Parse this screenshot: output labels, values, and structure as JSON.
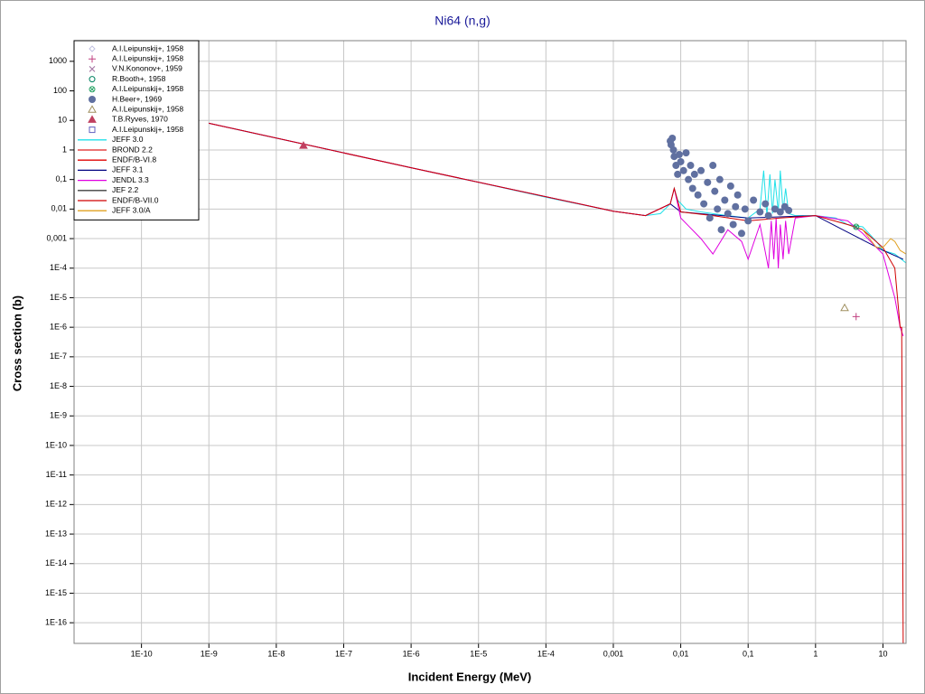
{
  "chart_data": {
    "type": "line",
    "title": "Ni64 (n,g)",
    "x_label": "Incident Energy (MeV)",
    "y_label": "Cross section (b)",
    "xlog": true,
    "ylog": true,
    "grid": true,
    "legend": "upper left",
    "xlim": [
      1e-11,
      22
    ],
    "ylim": [
      2e-17,
      5000
    ],
    "xticks": [
      {
        "value": 1e-10,
        "label": "1E-10"
      },
      {
        "value": 1e-09,
        "label": "1E-9"
      },
      {
        "value": 1e-08,
        "label": "1E-8"
      },
      {
        "value": 1e-07,
        "label": "1E-7"
      },
      {
        "value": 1e-06,
        "label": "1E-6"
      },
      {
        "value": 1e-05,
        "label": "1E-5"
      },
      {
        "value": 0.0001,
        "label": "1E-4"
      },
      {
        "value": 0.001,
        "label": "0,001"
      },
      {
        "value": 0.01,
        "label": "0,01"
      },
      {
        "value": 0.1,
        "label": "0,1"
      },
      1,
      10
    ],
    "yticks": [
      1000,
      100,
      10,
      1,
      {
        "value": 0.1,
        "label": "0,1"
      },
      {
        "value": 0.01,
        "label": "0,01"
      },
      {
        "value": 0.001,
        "label": "0,001"
      },
      {
        "value": 0.0001,
        "label": "1E-4"
      },
      {
        "value": 1e-05,
        "label": "1E-5"
      },
      {
        "value": 1e-06,
        "label": "1E-6"
      },
      {
        "value": 1e-07,
        "label": "1E-7"
      },
      {
        "value": 1e-08,
        "label": "1E-8"
      },
      {
        "value": 1e-09,
        "label": "1E-9"
      },
      {
        "value": 1e-10,
        "label": "1E-10"
      },
      {
        "value": 1e-11,
        "label": "1E-11"
      },
      {
        "value": 1e-12,
        "label": "1E-12"
      },
      {
        "value": 1e-13,
        "label": "1E-13"
      },
      {
        "value": 1e-14,
        "label": "1E-14"
      },
      {
        "value": 1e-15,
        "label": "1E-15"
      },
      {
        "value": 1e-16,
        "label": "1E-16"
      }
    ],
    "series": [
      {
        "name": "A.I.Leipunskij+, 1958",
        "color": "#c0c0e0",
        "marker": "diamond"
      },
      {
        "name": "A.I.Leipunskij+, 1958",
        "color": "#c04080",
        "marker": "plus",
        "x": [
          4
        ],
        "values": [
          2.3e-06
        ]
      },
      {
        "name": "V.N.Kononov+, 1959",
        "color": "#a070a0",
        "marker": "x"
      },
      {
        "name": "R.Booth+, 1958",
        "color": "#008060",
        "marker": "circle"
      },
      {
        "name": "A.I.Leipunskij+, 1958",
        "color": "#20a060",
        "marker": "circle-cross",
        "x": [
          4
        ],
        "values": [
          0.0025
        ]
      },
      {
        "name": "H.Beer+, 1969",
        "color": "#6070a0",
        "marker": "dot",
        "x": [
          0.007,
          0.0072,
          0.0075,
          0.0078,
          0.008,
          0.0085,
          0.009,
          0.0095,
          0.01,
          0.011,
          0.012,
          0.013,
          0.014,
          0.015,
          0.016,
          0.018,
          0.02,
          0.022,
          0.025,
          0.027,
          0.03,
          0.032,
          0.035,
          0.038,
          0.04,
          0.045,
          0.05,
          0.055,
          0.06,
          0.065,
          0.07,
          0.08,
          0.09,
          0.1,
          0.12,
          0.15,
          0.18,
          0.2,
          0.25,
          0.3,
          0.35,
          0.4
        ],
        "values": [
          2.0,
          1.5,
          2.5,
          1.0,
          0.6,
          0.3,
          0.15,
          0.7,
          0.4,
          0.2,
          0.8,
          0.1,
          0.3,
          0.05,
          0.15,
          0.03,
          0.2,
          0.015,
          0.08,
          0.005,
          0.3,
          0.04,
          0.01,
          0.1,
          0.002,
          0.02,
          0.007,
          0.06,
          0.003,
          0.012,
          0.03,
          0.0015,
          0.01,
          0.004,
          0.02,
          0.008,
          0.015,
          0.006,
          0.01,
          0.008,
          0.012,
          0.009
        ]
      },
      {
        "name": "A.I.Leipunskij+, 1958",
        "color": "#a09060",
        "marker": "triangle",
        "x": [
          2.7
        ],
        "values": [
          4.5e-06
        ]
      },
      {
        "name": "T.B.Ryves, 1970",
        "color": "#c04060",
        "marker": "triangle-filled",
        "x": [
          2.53e-08
        ],
        "values": [
          1.4
        ]
      },
      {
        "name": "A.I.Leipunskij+, 1958",
        "color": "#6060c0",
        "marker": "square"
      },
      {
        "name": "JEFF 3.0",
        "color": "#20e0e8",
        "marker": "line",
        "x": [
          1e-09,
          1e-08,
          1e-07,
          1e-06,
          1e-05,
          0.0001,
          0.001,
          0.003,
          0.005,
          0.007,
          0.008,
          0.009,
          0.012,
          0.02,
          0.03,
          0.05,
          0.1,
          0.15,
          0.17,
          0.19,
          0.21,
          0.23,
          0.25,
          0.28,
          0.3,
          0.33,
          0.36,
          0.4,
          0.5,
          1,
          2,
          3,
          5,
          8,
          10,
          15,
          22
        ],
        "values": [
          8,
          2.5,
          0.8,
          0.25,
          0.08,
          0.025,
          0.0085,
          0.006,
          0.007,
          0.015,
          0.05,
          0.02,
          0.01,
          0.008,
          0.007,
          0.006,
          0.005,
          0.01,
          0.2,
          0.006,
          0.15,
          0.007,
          0.1,
          0.008,
          0.2,
          0.008,
          0.05,
          0.007,
          0.006,
          0.006,
          0.005,
          0.003,
          0.0025,
          0.0008,
          0.0004,
          0.0003,
          0.00015
        ]
      },
      {
        "name": "BROND 2.2",
        "color": "#e02020",
        "marker": "line"
      },
      {
        "name": "ENDF/B-VI.8",
        "color": "#e00000",
        "marker": "line"
      },
      {
        "name": "JEFF 3.1",
        "color": "#000080",
        "marker": "line",
        "x": [
          1e-09,
          1e-06,
          0.001,
          0.003,
          0.007,
          0.01,
          0.1,
          1,
          10,
          20
        ],
        "values": [
          8,
          0.25,
          0.0085,
          0.006,
          0.015,
          0.008,
          0.005,
          0.006,
          0.0004,
          0.0002
        ]
      },
      {
        "name": "JENDL 3.3",
        "color": "#e000e0",
        "marker": "line",
        "x": [
          1e-09,
          1e-06,
          0.001,
          0.003,
          0.007,
          0.008,
          0.01,
          0.02,
          0.03,
          0.05,
          0.08,
          0.1,
          0.15,
          0.2,
          0.22,
          0.24,
          0.26,
          0.28,
          0.3,
          0.33,
          0.36,
          0.4,
          0.5,
          1,
          3,
          5,
          10,
          15,
          18,
          20
        ],
        "values": [
          8,
          0.25,
          0.0085,
          0.006,
          0.015,
          0.05,
          0.005,
          0.001,
          0.0003,
          0.002,
          0.0008,
          0.0002,
          0.003,
          0.0001,
          0.004,
          0.0002,
          0.005,
          0.0001,
          0.003,
          0.0002,
          0.004,
          0.0003,
          0.005,
          0.006,
          0.004,
          0.0015,
          0.0003,
          1e-05,
          1e-06,
          5e-07
        ]
      },
      {
        "name": "JEF 2.2",
        "color": "#404040",
        "marker": "line"
      },
      {
        "name": "ENDF/B-VII.0",
        "color": "#d00000",
        "marker": "line",
        "x": [
          1e-09,
          1e-06,
          0.001,
          0.003,
          0.007,
          0.008,
          0.01,
          0.03,
          0.1,
          0.3,
          1,
          3,
          5,
          10,
          15,
          18,
          19,
          20
        ],
        "values": [
          8,
          0.25,
          0.0085,
          0.006,
          0.015,
          0.05,
          0.008,
          0.006,
          0.004,
          0.005,
          0.006,
          0.003,
          0.002,
          0.0005,
          0.0001,
          1e-06,
          1e-06,
          1e-17
        ]
      },
      {
        "name": "JEFF 3.0/A",
        "color": "#e0a020",
        "marker": "line",
        "x": [
          5,
          8,
          10,
          13,
          15,
          18,
          22
        ],
        "values": [
          0.002,
          0.0005,
          0.0005,
          0.001,
          0.0008,
          0.0004,
          0.0003
        ]
      }
    ]
  }
}
